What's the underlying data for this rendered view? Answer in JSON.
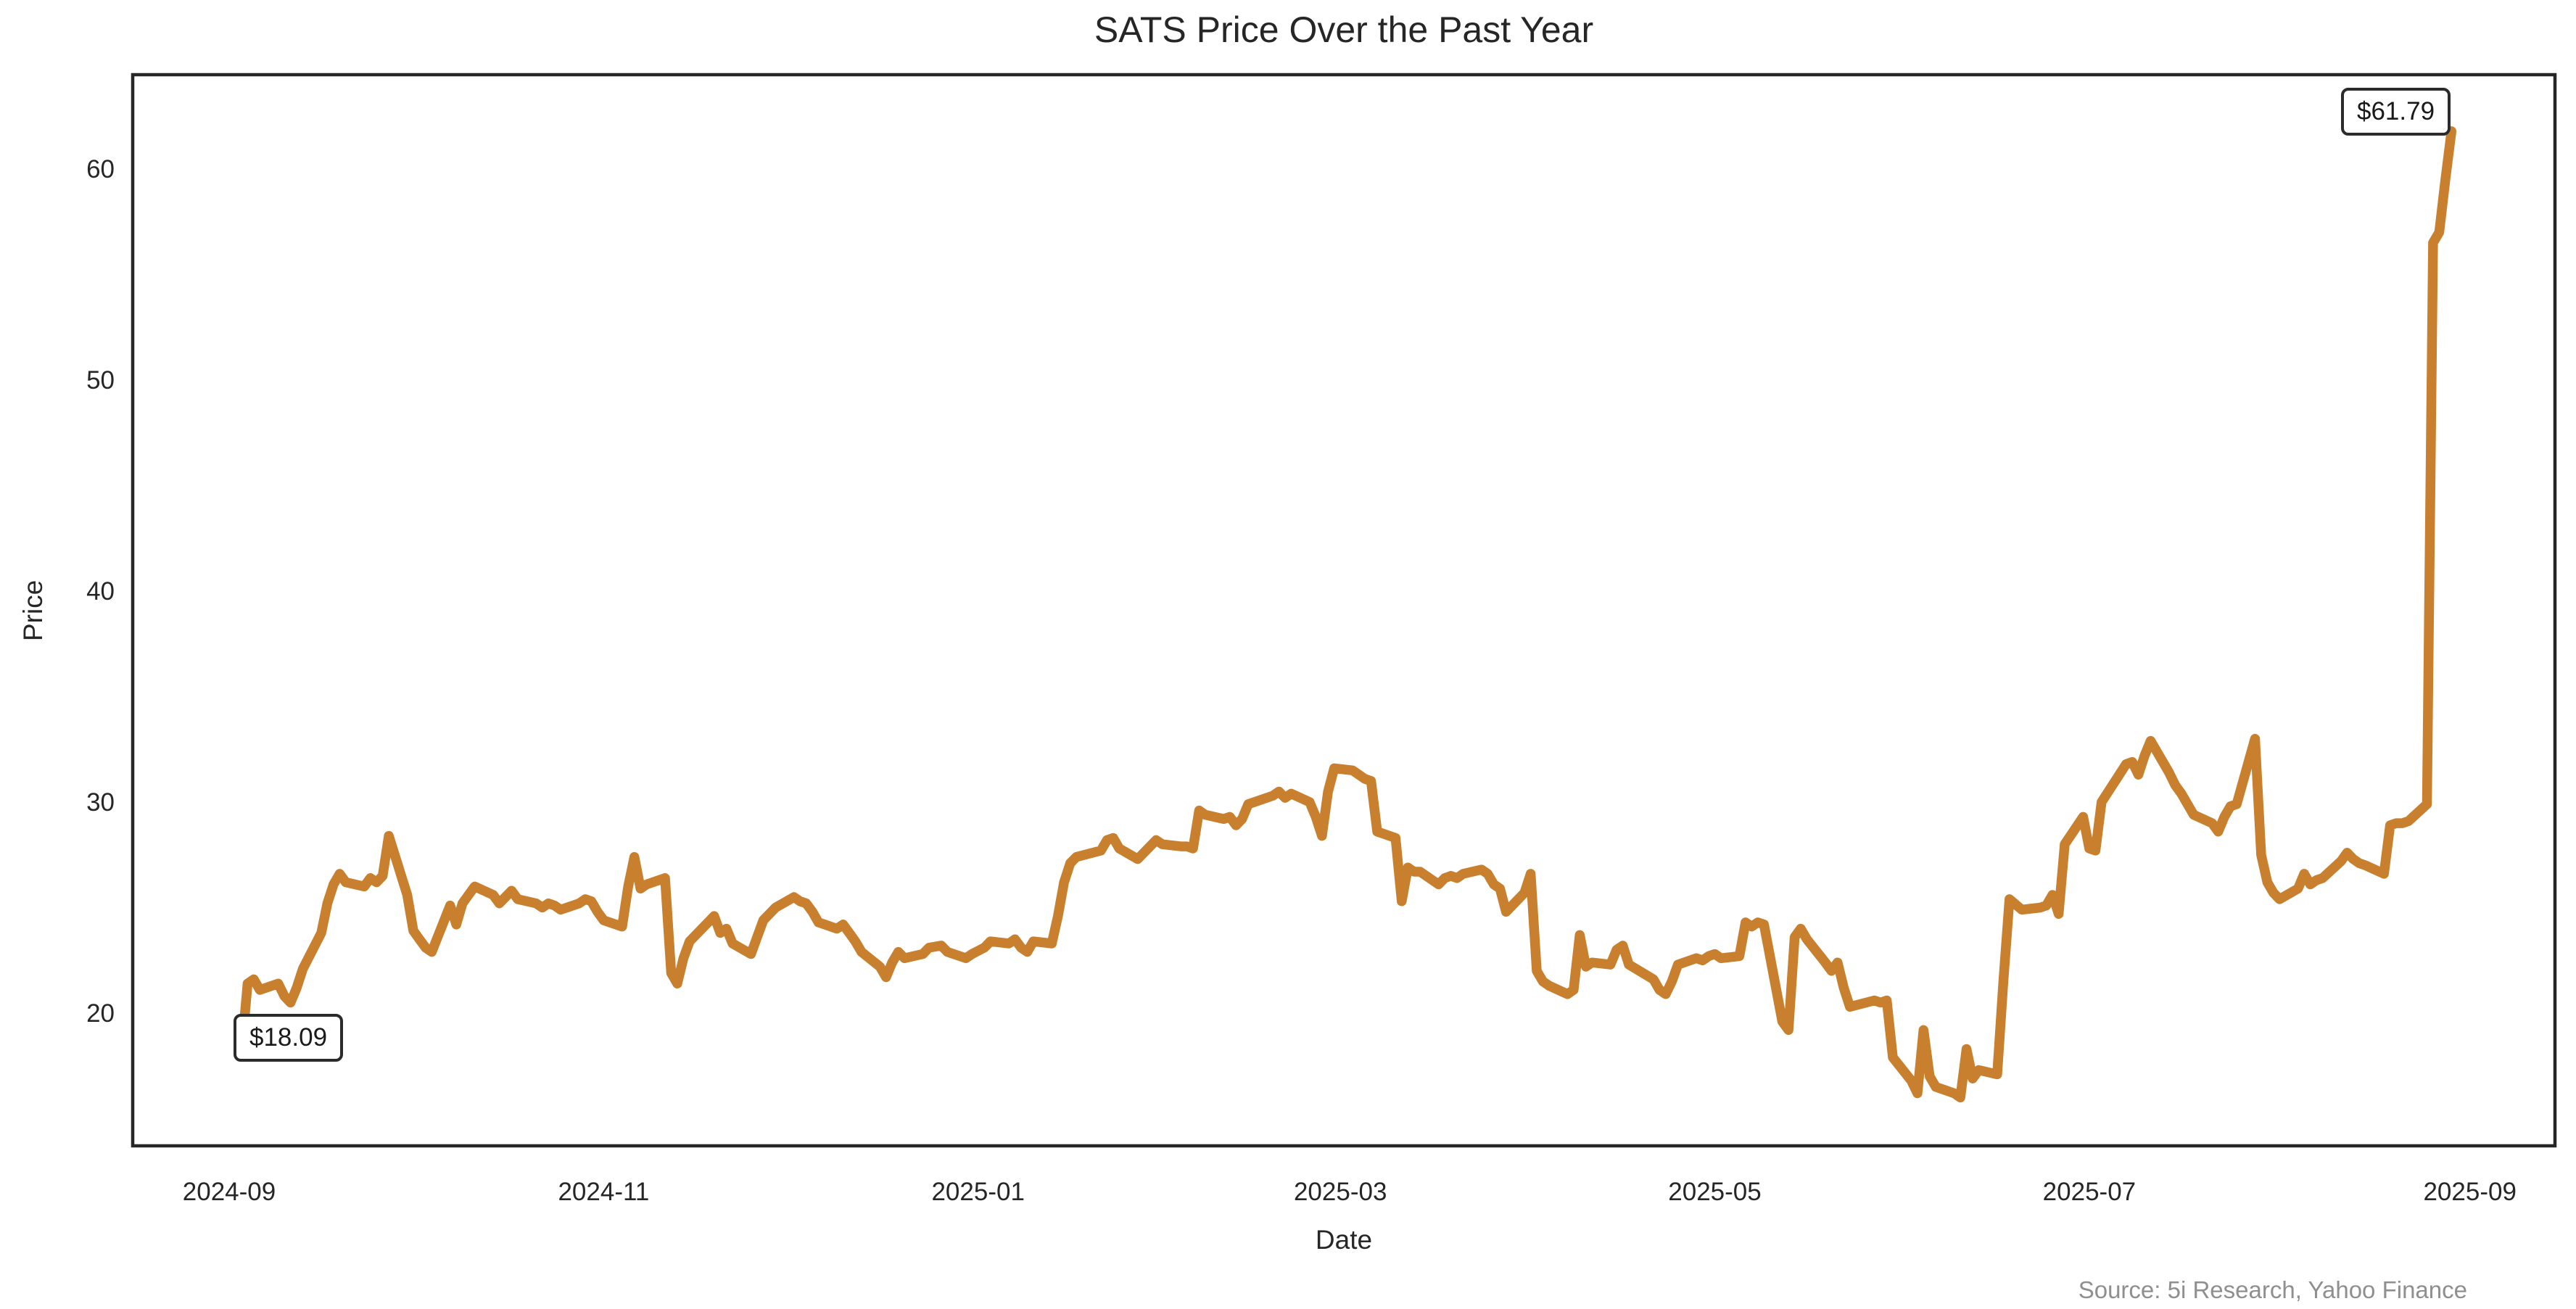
{
  "title": "SATS Price Over the Past Year",
  "axes": {
    "x_label": "Date",
    "y_label": "Price"
  },
  "annotations": {
    "start_label": "$18.09",
    "end_label": "$61.79"
  },
  "source_note": "Source: 5i Research, Yahoo Finance",
  "chart_data": {
    "type": "line",
    "title": "SATS Price Over the Past Year",
    "xlabel": "Date",
    "ylabel": "Price",
    "line_color": "#C8802F",
    "spine_color": "#262626",
    "background_color": "#ffffff",
    "grid": false,
    "legend": false,
    "ylim": [
      13.7,
      64.5
    ],
    "xlim": [
      "2024-08-16",
      "2025-09-14"
    ],
    "y_ticks": [
      20,
      30,
      40,
      50,
      60
    ],
    "x_ticks": [
      {
        "label": "2024-09",
        "date": "2024-09-01"
      },
      {
        "label": "2024-11",
        "date": "2024-11-01"
      },
      {
        "label": "2025-01",
        "date": "2025-01-01"
      },
      {
        "label": "2025-03",
        "date": "2025-03-01"
      },
      {
        "label": "2025-05",
        "date": "2025-05-01"
      },
      {
        "label": "2025-07",
        "date": "2025-07-01"
      },
      {
        "label": "2025-09",
        "date": "2025-09-01"
      }
    ],
    "annotated_points": [
      {
        "date": "2024-09-03",
        "price": 18.09,
        "label": "$18.09"
      },
      {
        "date": "2025-08-29",
        "price": 61.79,
        "label": "$61.79"
      }
    ],
    "series": [
      {
        "name": "SATS",
        "points": [
          [
            "2024-09-03",
            18.09
          ],
          [
            "2024-09-04",
            21.4
          ],
          [
            "2024-09-05",
            21.6
          ],
          [
            "2024-09-06",
            21.1
          ],
          [
            "2024-09-09",
            21.4
          ],
          [
            "2024-09-10",
            20.8
          ],
          [
            "2024-09-11",
            20.5
          ],
          [
            "2024-09-12",
            21.2
          ],
          [
            "2024-09-13",
            22.1
          ],
          [
            "2024-09-16",
            23.8
          ],
          [
            "2024-09-17",
            25.2
          ],
          [
            "2024-09-18",
            26.1
          ],
          [
            "2024-09-19",
            26.6
          ],
          [
            "2024-09-20",
            26.2
          ],
          [
            "2024-09-23",
            26.0
          ],
          [
            "2024-09-24",
            26.4
          ],
          [
            "2024-09-25",
            26.2
          ],
          [
            "2024-09-26",
            26.5
          ],
          [
            "2024-09-27",
            28.4
          ],
          [
            "2024-09-30",
            25.6
          ],
          [
            "2024-10-01",
            23.9
          ],
          [
            "2024-10-02",
            23.5
          ],
          [
            "2024-10-03",
            23.1
          ],
          [
            "2024-10-04",
            22.9
          ],
          [
            "2024-10-07",
            25.1
          ],
          [
            "2024-10-08",
            24.2
          ],
          [
            "2024-10-09",
            25.2
          ],
          [
            "2024-10-10",
            25.6
          ],
          [
            "2024-10-11",
            26.0
          ],
          [
            "2024-10-14",
            25.6
          ],
          [
            "2024-10-15",
            25.2
          ],
          [
            "2024-10-16",
            25.5
          ],
          [
            "2024-10-17",
            25.8
          ],
          [
            "2024-10-18",
            25.4
          ],
          [
            "2024-10-21",
            25.2
          ],
          [
            "2024-10-22",
            25.0
          ],
          [
            "2024-10-23",
            25.2
          ],
          [
            "2024-10-24",
            25.1
          ],
          [
            "2024-10-25",
            24.9
          ],
          [
            "2024-10-28",
            25.2
          ],
          [
            "2024-10-29",
            25.4
          ],
          [
            "2024-10-30",
            25.3
          ],
          [
            "2024-10-31",
            24.8
          ],
          [
            "2024-11-01",
            24.4
          ],
          [
            "2024-11-04",
            24.1
          ],
          [
            "2024-11-05",
            26.0
          ],
          [
            "2024-11-06",
            27.4
          ],
          [
            "2024-11-07",
            25.9
          ],
          [
            "2024-11-08",
            26.1
          ],
          [
            "2024-11-11",
            26.4
          ],
          [
            "2024-11-12",
            21.9
          ],
          [
            "2024-11-13",
            21.4
          ],
          [
            "2024-11-14",
            22.6
          ],
          [
            "2024-11-15",
            23.4
          ],
          [
            "2024-11-18",
            24.3
          ],
          [
            "2024-11-19",
            24.6
          ],
          [
            "2024-11-20",
            23.8
          ],
          [
            "2024-11-21",
            24.0
          ],
          [
            "2024-11-22",
            23.3
          ],
          [
            "2024-11-25",
            22.8
          ],
          [
            "2024-11-26",
            23.6
          ],
          [
            "2024-11-27",
            24.4
          ],
          [
            "2024-11-29",
            25.0
          ],
          [
            "2024-12-02",
            25.5
          ],
          [
            "2024-12-03",
            25.3
          ],
          [
            "2024-12-04",
            25.2
          ],
          [
            "2024-12-05",
            24.8
          ],
          [
            "2024-12-06",
            24.3
          ],
          [
            "2024-12-09",
            24.0
          ],
          [
            "2024-12-10",
            24.2
          ],
          [
            "2024-12-11",
            23.8
          ],
          [
            "2024-12-12",
            23.4
          ],
          [
            "2024-12-13",
            22.9
          ],
          [
            "2024-12-16",
            22.2
          ],
          [
            "2024-12-17",
            21.7
          ],
          [
            "2024-12-18",
            22.4
          ],
          [
            "2024-12-19",
            22.9
          ],
          [
            "2024-12-20",
            22.6
          ],
          [
            "2024-12-23",
            22.8
          ],
          [
            "2024-12-24",
            23.1
          ],
          [
            "2024-12-26",
            23.2
          ],
          [
            "2024-12-27",
            22.9
          ],
          [
            "2024-12-30",
            22.6
          ],
          [
            "2024-12-31",
            22.8
          ],
          [
            "2025-01-02",
            23.1
          ],
          [
            "2025-01-03",
            23.4
          ],
          [
            "2025-01-06",
            23.3
          ],
          [
            "2025-01-07",
            23.5
          ],
          [
            "2025-01-08",
            23.1
          ],
          [
            "2025-01-09",
            22.9
          ],
          [
            "2025-01-10",
            23.4
          ],
          [
            "2025-01-13",
            23.3
          ],
          [
            "2025-01-14",
            24.6
          ],
          [
            "2025-01-15",
            26.2
          ],
          [
            "2025-01-16",
            27.1
          ],
          [
            "2025-01-17",
            27.4
          ],
          [
            "2025-01-21",
            27.7
          ],
          [
            "2025-01-22",
            28.2
          ],
          [
            "2025-01-23",
            28.3
          ],
          [
            "2025-01-24",
            27.8
          ],
          [
            "2025-01-27",
            27.3
          ],
          [
            "2025-01-28",
            27.6
          ],
          [
            "2025-01-29",
            27.9
          ],
          [
            "2025-01-30",
            28.2
          ],
          [
            "2025-01-31",
            28.0
          ],
          [
            "2025-02-03",
            27.9
          ],
          [
            "2025-02-04",
            27.9
          ],
          [
            "2025-02-05",
            27.8
          ],
          [
            "2025-02-06",
            29.6
          ],
          [
            "2025-02-07",
            29.4
          ],
          [
            "2025-02-10",
            29.2
          ],
          [
            "2025-02-11",
            29.3
          ],
          [
            "2025-02-12",
            28.9
          ],
          [
            "2025-02-13",
            29.2
          ],
          [
            "2025-02-14",
            29.9
          ],
          [
            "2025-02-18",
            30.3
          ],
          [
            "2025-02-19",
            30.5
          ],
          [
            "2025-02-20",
            30.2
          ],
          [
            "2025-02-21",
            30.4
          ],
          [
            "2025-02-24",
            30.0
          ],
          [
            "2025-02-25",
            29.3
          ],
          [
            "2025-02-26",
            28.4
          ],
          [
            "2025-02-27",
            30.5
          ],
          [
            "2025-02-28",
            31.6
          ],
          [
            "2025-03-03",
            31.5
          ],
          [
            "2025-03-04",
            31.3
          ],
          [
            "2025-03-05",
            31.1
          ],
          [
            "2025-03-06",
            31.0
          ],
          [
            "2025-03-07",
            28.6
          ],
          [
            "2025-03-10",
            28.3
          ],
          [
            "2025-03-11",
            25.3
          ],
          [
            "2025-03-12",
            26.9
          ],
          [
            "2025-03-13",
            26.7
          ],
          [
            "2025-03-14",
            26.7
          ],
          [
            "2025-03-17",
            26.1
          ],
          [
            "2025-03-18",
            26.4
          ],
          [
            "2025-03-19",
            26.5
          ],
          [
            "2025-03-20",
            26.4
          ],
          [
            "2025-03-21",
            26.6
          ],
          [
            "2025-03-24",
            26.8
          ],
          [
            "2025-03-25",
            26.6
          ],
          [
            "2025-03-26",
            26.1
          ],
          [
            "2025-03-27",
            25.9
          ],
          [
            "2025-03-28",
            24.8
          ],
          [
            "2025-03-31",
            25.7
          ],
          [
            "2025-04-01",
            26.6
          ],
          [
            "2025-04-02",
            22.0
          ],
          [
            "2025-04-03",
            21.5
          ],
          [
            "2025-04-04",
            21.3
          ],
          [
            "2025-04-07",
            20.9
          ],
          [
            "2025-04-08",
            21.1
          ],
          [
            "2025-04-09",
            23.7
          ],
          [
            "2025-04-10",
            22.2
          ],
          [
            "2025-04-11",
            22.4
          ],
          [
            "2025-04-14",
            22.3
          ],
          [
            "2025-04-15",
            23.0
          ],
          [
            "2025-04-16",
            23.2
          ],
          [
            "2025-04-17",
            22.3
          ],
          [
            "2025-04-21",
            21.6
          ],
          [
            "2025-04-22",
            21.1
          ],
          [
            "2025-04-23",
            20.9
          ],
          [
            "2025-04-24",
            21.5
          ],
          [
            "2025-04-25",
            22.3
          ],
          [
            "2025-04-28",
            22.6
          ],
          [
            "2025-04-29",
            22.5
          ],
          [
            "2025-04-30",
            22.7
          ],
          [
            "2025-05-01",
            22.8
          ],
          [
            "2025-05-02",
            22.6
          ],
          [
            "2025-05-05",
            22.7
          ],
          [
            "2025-05-06",
            24.3
          ],
          [
            "2025-05-07",
            24.1
          ],
          [
            "2025-05-08",
            24.3
          ],
          [
            "2025-05-09",
            24.2
          ],
          [
            "2025-05-12",
            19.6
          ],
          [
            "2025-05-13",
            19.2
          ],
          [
            "2025-05-14",
            23.6
          ],
          [
            "2025-05-15",
            24.0
          ],
          [
            "2025-05-16",
            23.5
          ],
          [
            "2025-05-19",
            22.4
          ],
          [
            "2025-05-20",
            22.0
          ],
          [
            "2025-05-21",
            22.4
          ],
          [
            "2025-05-22",
            21.2
          ],
          [
            "2025-05-23",
            20.3
          ],
          [
            "2025-05-27",
            20.6
          ],
          [
            "2025-05-28",
            20.5
          ],
          [
            "2025-05-29",
            20.6
          ],
          [
            "2025-05-30",
            17.9
          ],
          [
            "2025-06-02",
            16.8
          ],
          [
            "2025-06-03",
            16.2
          ],
          [
            "2025-06-04",
            19.2
          ],
          [
            "2025-06-05",
            17.0
          ],
          [
            "2025-06-06",
            16.5
          ],
          [
            "2025-06-09",
            16.2
          ],
          [
            "2025-06-10",
            16.0
          ],
          [
            "2025-06-11",
            18.3
          ],
          [
            "2025-06-12",
            16.9
          ],
          [
            "2025-06-13",
            17.3
          ],
          [
            "2025-06-16",
            17.1
          ],
          [
            "2025-06-17",
            21.5
          ],
          [
            "2025-06-18",
            25.4
          ],
          [
            "2025-06-20",
            24.9
          ],
          [
            "2025-06-23",
            25.0
          ],
          [
            "2025-06-24",
            25.1
          ],
          [
            "2025-06-25",
            25.6
          ],
          [
            "2025-06-26",
            24.7
          ],
          [
            "2025-06-27",
            28.0
          ],
          [
            "2025-06-30",
            29.3
          ],
          [
            "2025-07-01",
            27.8
          ],
          [
            "2025-07-02",
            27.7
          ],
          [
            "2025-07-03",
            30.0
          ],
          [
            "2025-07-07",
            31.8
          ],
          [
            "2025-07-08",
            31.9
          ],
          [
            "2025-07-09",
            31.3
          ],
          [
            "2025-07-10",
            32.2
          ],
          [
            "2025-07-11",
            32.9
          ],
          [
            "2025-07-14",
            31.4
          ],
          [
            "2025-07-15",
            30.8
          ],
          [
            "2025-07-16",
            30.4
          ],
          [
            "2025-07-17",
            29.9
          ],
          [
            "2025-07-18",
            29.4
          ],
          [
            "2025-07-21",
            29.0
          ],
          [
            "2025-07-22",
            28.6
          ],
          [
            "2025-07-23",
            29.3
          ],
          [
            "2025-07-24",
            29.8
          ],
          [
            "2025-07-25",
            29.9
          ],
          [
            "2025-07-28",
            33.0
          ],
          [
            "2025-07-29",
            27.5
          ],
          [
            "2025-07-30",
            26.2
          ],
          [
            "2025-07-31",
            25.7
          ],
          [
            "2025-08-01",
            25.4
          ],
          [
            "2025-08-04",
            25.9
          ],
          [
            "2025-08-05",
            26.6
          ],
          [
            "2025-08-06",
            26.1
          ],
          [
            "2025-08-07",
            26.3
          ],
          [
            "2025-08-08",
            26.4
          ],
          [
            "2025-08-11",
            27.2
          ],
          [
            "2025-08-12",
            27.6
          ],
          [
            "2025-08-13",
            27.3
          ],
          [
            "2025-08-14",
            27.1
          ],
          [
            "2025-08-15",
            27.0
          ],
          [
            "2025-08-18",
            26.6
          ],
          [
            "2025-08-19",
            28.9
          ],
          [
            "2025-08-20",
            29.0
          ],
          [
            "2025-08-21",
            29.0
          ],
          [
            "2025-08-22",
            29.1
          ],
          [
            "2025-08-25",
            29.9
          ],
          [
            "2025-08-26",
            56.5
          ],
          [
            "2025-08-27",
            57.0
          ],
          [
            "2025-08-28",
            59.5
          ],
          [
            "2025-08-29",
            61.79
          ]
        ]
      }
    ]
  }
}
